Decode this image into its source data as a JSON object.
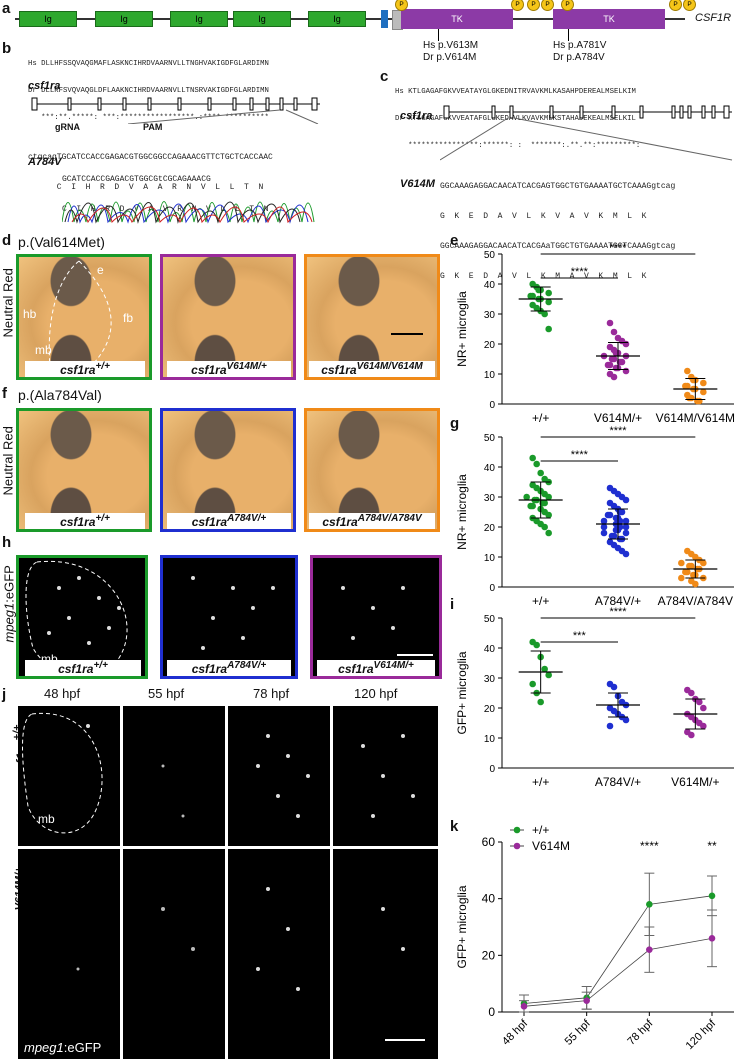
{
  "panel_labels": {
    "a": "a",
    "b": "b",
    "c": "c",
    "d": "d",
    "e": "e",
    "f": "f",
    "g": "g",
    "h": "h",
    "i": "i",
    "j": "j",
    "k": "k"
  },
  "panel_a": {
    "gene": "CSF1R",
    "ig_label": "Ig",
    "tk_label": "TK",
    "p_label": "P",
    "hs1": "Hs p.V613M",
    "dr1": "Dr p.V614M",
    "hs2": "Hs p.A781V",
    "dr2": "Dr p.A784V"
  },
  "panel_b": {
    "hs_line": "Hs DLLHFSSQVAQGMAFLASKNCIHRDVAARNVLLTNGHVAKIGDFGLARDIMN",
    "dr_line": "Dr DLLRFSVQVAQGLDFLAAKNCIHRDVAARNVLLTNSRVAKIGDFGLARDIMN",
    "cons_line": "   ***:**.*****: ***:*****************.:**** **********",
    "gene": "csf1ra",
    "grna": "gRNA",
    "pam": "PAM",
    "seq_wt": "ctgcagTGCATCCACCGAGACGTGGCGGCCAGAAACGTTCTGCTCACCAAC",
    "aa_wt": "      C  I  H  R  D  V  A  A  R  N  V  L  L  T  N",
    "mut_label": "A784V",
    "seq_mut": "GCATCCACCGAGACGTGGCGtCGCAGAAACG",
    "aa_mut": "C  I  H  R  D  V  A  V  R  N  V  L  L  T  N"
  },
  "panel_c": {
    "hs_line": "Hs KTLGAGAFGKVVEATAYGLGKEDNITRVAVKMLKASAHPDEREALMSELKIM",
    "dr_line": "Dr KTLGAGAFGKVVEATAFGLGKEDAVLKVAVKMLKSTAHADEKEALMSELKIL",
    "cons_line": "   ****************:******: :  *******:.**.**:*********:",
    "gene": "csf1ra",
    "mut_label": "V614M",
    "seq_wt": "GGCAAAGAGGACAACATCACGAGTGGCTGTGAAAATGCTCAAAGgtcag",
    "aa_wt": "G  K  E  D  A  V  L  K  V  A  V  K  M  L  K",
    "seq_mut": "GGCAAAGAGGACAACATCACGAaTGGCTGTGAAAATGCTCAAAGgtcag",
    "aa_mut": "G  K  E  D  A  V  L  K  M  A  V  K  M  L  K"
  },
  "panel_d": {
    "title": "p.(Val614Met)",
    "stain": "Neutral Red",
    "g1": "csf1ra",
    "g1_sup": "+/+",
    "g2": "csf1ra",
    "g2_sup": "V614M/+",
    "g3": "csf1ra",
    "g3_sup": "V614M/V614M",
    "ann_e": "e",
    "ann_hb": "hb",
    "ann_mb": "mb",
    "ann_fb": "fb"
  },
  "panel_f": {
    "title": "p.(Ala784Val)",
    "stain": "Neutral Red",
    "g1": "csf1ra",
    "g1_sup": "+/+",
    "g2": "csf1ra",
    "g2_sup": "A784V/+",
    "g3": "csf1ra",
    "g3_sup": "A784V/A784V"
  },
  "panel_h": {
    "reporter": "mpeg1",
    "reporter_suffix": ":eGFP",
    "ann_mb": "mb",
    "g1": "csf1ra",
    "g1_sup": "+/+",
    "g2": "csf1ra",
    "g2_sup": "A784V/+",
    "g3": "csf1ra",
    "g3_sup": "V614M/+"
  },
  "panel_j": {
    "times": [
      "48 hpf",
      "55 hpf",
      "78 hpf",
      "120 hpf"
    ],
    "row1": "csf1ra",
    "row1_sup": "+/+",
    "row2": "csf1ra",
    "row2_sup": "V614M/+",
    "ann_mb": "mb",
    "reporter": "mpeg1",
    "reporter_suffix": ":eGFP"
  },
  "colors": {
    "green": "#1a9a2a",
    "purple": "#9a2a9a",
    "orange": "#f08a18",
    "blue": "#1f2fd0",
    "ig": "#2ea82e",
    "tk": "#8c3aa6"
  },
  "chart_data": [
    {
      "id": "e",
      "type": "scatter",
      "ylabel": "NR+ microglia",
      "ylim": [
        0,
        50
      ],
      "yticks": [
        0,
        10,
        20,
        30,
        40,
        50
      ],
      "categories": [
        "+/+",
        "V614M/+",
        "V614M/V614M"
      ],
      "series": [
        {
          "color": "#1a9a2a",
          "mean": 35,
          "sd": 4,
          "values": [
            40,
            39,
            38,
            38,
            37,
            36,
            36,
            35,
            35,
            34,
            33,
            32,
            31,
            30,
            25
          ]
        },
        {
          "color": "#9a2a9a",
          "mean": 16,
          "sd": 4.5,
          "values": [
            27,
            24,
            22,
            21,
            20,
            19,
            18,
            17,
            17,
            16,
            16,
            15,
            15,
            14,
            14,
            13,
            13,
            12,
            12,
            11,
            10,
            9
          ]
        },
        {
          "color": "#f08a18",
          "mean": 5,
          "sd": 3.5,
          "values": [
            11,
            9,
            8,
            8,
            7,
            6,
            6,
            5,
            5,
            4,
            3,
            2,
            2,
            1,
            1
          ]
        }
      ],
      "comparisons": [
        {
          "from": 0,
          "to": 1,
          "label": "****"
        },
        {
          "from": 0,
          "to": 2,
          "label": "****"
        }
      ]
    },
    {
      "id": "g",
      "type": "scatter",
      "ylabel": "NR+ microglia",
      "ylim": [
        0,
        50
      ],
      "yticks": [
        0,
        10,
        20,
        30,
        40,
        50
      ],
      "categories": [
        "+/+",
        "A784V/+",
        "A784V/A784V"
      ],
      "series": [
        {
          "color": "#1a9a2a",
          "mean": 29,
          "sd": 6,
          "values": [
            43,
            41,
            38,
            36,
            35,
            34,
            33,
            32,
            31,
            30,
            30,
            29,
            29,
            28,
            28,
            27,
            27,
            26,
            25,
            24,
            23,
            22,
            21,
            20,
            18
          ]
        },
        {
          "color": "#1f2fd0",
          "mean": 21,
          "sd": 5,
          "values": [
            33,
            32,
            31,
            30,
            29,
            28,
            27,
            26,
            25,
            25,
            24,
            24,
            23,
            23,
            22,
            22,
            22,
            21,
            21,
            20,
            20,
            20,
            19,
            19,
            18,
            18,
            17,
            17,
            16,
            16,
            15,
            14,
            13,
            12,
            11
          ]
        },
        {
          "color": "#f08a18",
          "mean": 6,
          "sd": 3,
          "values": [
            12,
            11,
            10,
            9,
            8,
            8,
            7,
            7,
            6,
            6,
            5,
            5,
            4,
            4,
            3,
            3,
            2,
            1
          ]
        }
      ],
      "comparisons": [
        {
          "from": 0,
          "to": 1,
          "label": "****"
        },
        {
          "from": 0,
          "to": 2,
          "label": "****"
        }
      ]
    },
    {
      "id": "i",
      "type": "scatter",
      "ylabel": "GFP+ microglia",
      "ylim": [
        0,
        50
      ],
      "yticks": [
        0,
        10,
        20,
        30,
        40,
        50
      ],
      "categories": [
        "+/+",
        "A784V/+",
        "V614M/+"
      ],
      "series": [
        {
          "color": "#1a9a2a",
          "mean": 32,
          "sd": 7,
          "values": [
            42,
            41,
            37,
            33,
            31,
            28,
            25,
            22
          ]
        },
        {
          "color": "#1f2fd0",
          "mean": 21,
          "sd": 4,
          "values": [
            28,
            27,
            24,
            22,
            21,
            20,
            19,
            18,
            17,
            16,
            14
          ]
        },
        {
          "color": "#9a2a9a",
          "mean": 18,
          "sd": 5,
          "values": [
            26,
            25,
            23,
            22,
            20,
            18,
            17,
            16,
            15,
            14,
            12,
            11
          ]
        }
      ],
      "comparisons": [
        {
          "from": 0,
          "to": 1,
          "label": "***"
        },
        {
          "from": 0,
          "to": 2,
          "label": "****"
        }
      ]
    },
    {
      "id": "k",
      "type": "line",
      "ylabel": "GFP+ microglia",
      "ylim": [
        0,
        60
      ],
      "yticks": [
        0,
        20,
        40,
        60
      ],
      "x": [
        "48 hpf",
        "55 hpf",
        "78 hpf",
        "120 hpf"
      ],
      "series": [
        {
          "name": "+/+",
          "color": "#1a9a2a",
          "values": [
            3,
            5,
            38,
            41
          ],
          "sd": [
            3,
            4,
            11,
            7
          ]
        },
        {
          "name": "V614M",
          "color": "#9a2a9a",
          "values": [
            2,
            4,
            22,
            26
          ],
          "sd": [
            2,
            3,
            8,
            10
          ]
        }
      ],
      "significance": [
        "",
        "",
        "****",
        "**"
      ],
      "legend": "top-left"
    }
  ]
}
